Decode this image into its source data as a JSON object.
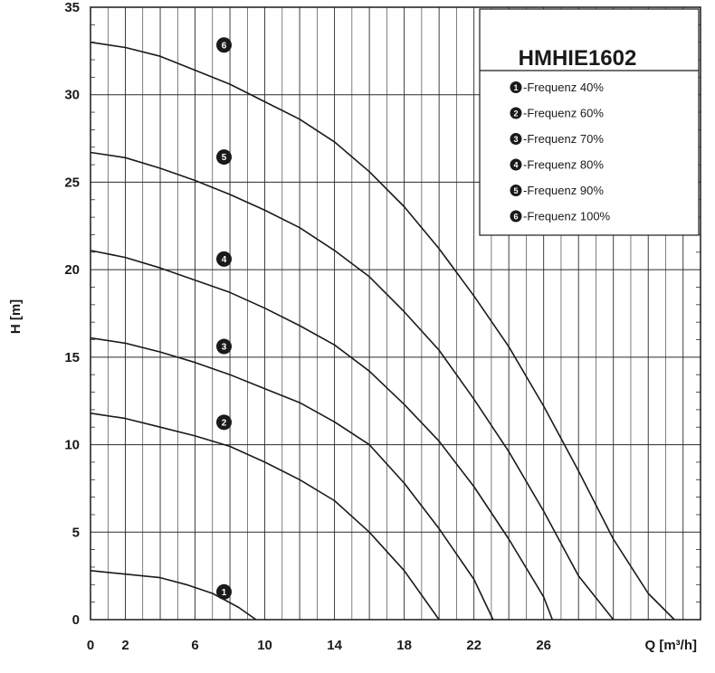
{
  "chart_data": {
    "type": "line",
    "title": "HMHIE1602",
    "xlabel": "Q [m³/h]",
    "ylabel": "H [m]",
    "xlim": [
      0,
      35
    ],
    "ylim": [
      0,
      35
    ],
    "x_ticks": [
      "0",
      "2",
      "6",
      "10",
      "14",
      "18",
      "22",
      "26"
    ],
    "y_ticks": [
      "0",
      "5",
      "10",
      "15",
      "20",
      "25",
      "30",
      "35"
    ],
    "grid": true,
    "legend_position": "top-right",
    "series": [
      {
        "name": "-Frequenz 40%",
        "marker": "1",
        "x": [
          0,
          2,
          4,
          5.5,
          7,
          8.5,
          9.5
        ],
        "y": [
          2.8,
          2.6,
          2.4,
          2.0,
          1.5,
          0.7,
          0
        ]
      },
      {
        "name": "-Frequenz 60%",
        "marker": "2",
        "x": [
          0,
          2,
          4,
          6,
          8,
          10,
          12,
          14,
          16,
          18,
          20
        ],
        "y": [
          11.8,
          11.5,
          11.0,
          10.5,
          9.9,
          9.0,
          8.0,
          6.8,
          5.0,
          2.8,
          0
        ]
      },
      {
        "name": "-Frequenz 70%",
        "marker": "3",
        "x": [
          0,
          2,
          4,
          6,
          8,
          10,
          12,
          14,
          16,
          18,
          20,
          22,
          23.1
        ],
        "y": [
          16.1,
          15.8,
          15.3,
          14.7,
          14.0,
          13.2,
          12.4,
          11.3,
          10.0,
          7.8,
          5.2,
          2.3,
          0
        ]
      },
      {
        "name": "-Frequenz 80%",
        "marker": "4",
        "x": [
          0,
          2,
          4,
          6,
          8,
          10,
          12,
          14,
          16,
          18,
          20,
          22,
          24,
          26,
          26.5
        ],
        "y": [
          21.1,
          20.7,
          20.1,
          19.4,
          18.7,
          17.8,
          16.8,
          15.7,
          14.2,
          12.3,
          10.2,
          7.6,
          4.6,
          1.3,
          0
        ]
      },
      {
        "name": "-Frequenz 90%",
        "marker": "5",
        "x": [
          0,
          2,
          4,
          6,
          8,
          10,
          12,
          14,
          16,
          18,
          20,
          22,
          24,
          26,
          28,
          30
        ],
        "y": [
          26.7,
          26.4,
          25.8,
          25.1,
          24.3,
          23.4,
          22.4,
          21.1,
          19.6,
          17.6,
          15.4,
          12.6,
          9.6,
          6.2,
          2.5,
          0
        ]
      },
      {
        "name": "-Frequenz 100%",
        "marker": "6",
        "x": [
          0,
          2,
          4,
          6,
          8,
          10,
          12,
          14,
          16,
          18,
          20,
          22,
          24,
          26,
          28,
          30,
          32,
          33.5
        ],
        "y": [
          33.0,
          32.7,
          32.2,
          31.4,
          30.6,
          29.6,
          28.6,
          27.3,
          25.6,
          23.6,
          21.2,
          18.5,
          15.6,
          12.2,
          8.5,
          4.6,
          1.5,
          0
        ]
      }
    ]
  }
}
